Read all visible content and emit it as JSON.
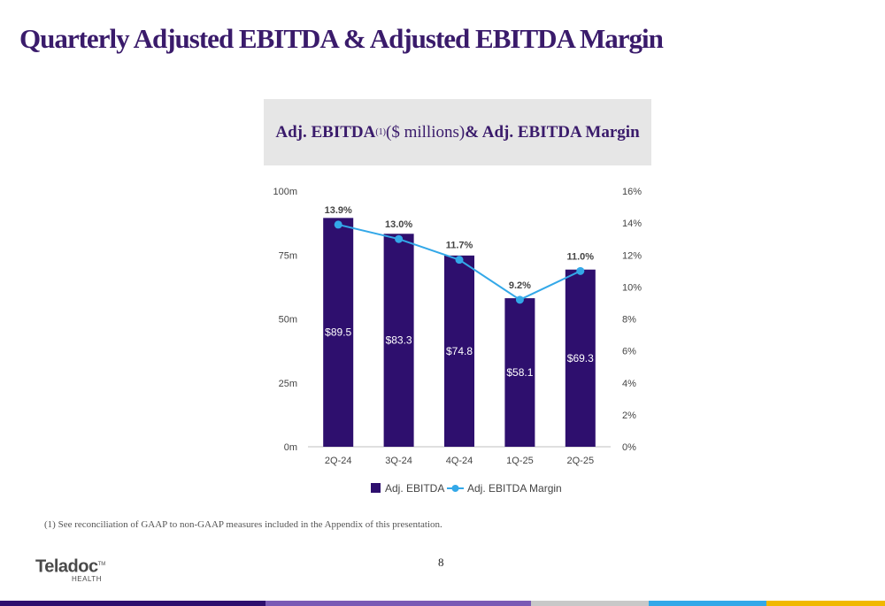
{
  "page": {
    "title": "Quarterly Adjusted EBITDA & Adjusted EBITDA Margin",
    "footnote": "(1) See reconciliation of GAAP to non-GAAP measures included in the Appendix of this presentation.",
    "page_number": "8"
  },
  "chart_header": {
    "part1": "Adj. EBITDA",
    "superscript": "(1)",
    "part2": " ($ millions) ",
    "part3": "& Adj. EBITDA Margin"
  },
  "logo": {
    "name": "Teladoc",
    "trademark": "TM",
    "sub": "HEALTH"
  },
  "colors": {
    "title": "#3a1b6b",
    "bar": "#2e0f6e",
    "line": "#33a8e8",
    "bottom_bar": [
      "#2e0f6e",
      "#7a5ab5",
      "#c8c8c8",
      "#33a8e8",
      "#f0b800"
    ]
  },
  "chart_data": {
    "type": "bar",
    "categories": [
      "2Q-24",
      "3Q-24",
      "4Q-24",
      "1Q-25",
      "2Q-25"
    ],
    "series": [
      {
        "name": "Adj. EBITDA",
        "type": "bar",
        "axis": "left",
        "values": [
          89.5,
          83.3,
          74.8,
          58.1,
          69.3
        ],
        "labels": [
          "$89.5",
          "$83.3",
          "$74.8",
          "$58.1",
          "$69.3"
        ]
      },
      {
        "name": "Adj. EBITDA Margin",
        "type": "line",
        "axis": "right",
        "values": [
          13.9,
          13.0,
          11.7,
          9.2,
          11.0
        ],
        "labels": [
          "13.9%",
          "13.0%",
          "11.7%",
          "9.2%",
          "11.0%"
        ]
      }
    ],
    "y_left": {
      "min": 0,
      "max": 100,
      "ticks": [
        0,
        25,
        50,
        75,
        100
      ],
      "tick_labels": [
        "0m",
        "25m",
        "50m",
        "75m",
        "100m"
      ]
    },
    "y_right": {
      "min": 0,
      "max": 16,
      "ticks": [
        0,
        2,
        4,
        6,
        8,
        10,
        12,
        14,
        16
      ],
      "tick_labels": [
        "0%",
        "2%",
        "4%",
        "6%",
        "8%",
        "10%",
        "12%",
        "14%",
        "16%"
      ]
    },
    "grid": false,
    "legend": "bottom"
  }
}
